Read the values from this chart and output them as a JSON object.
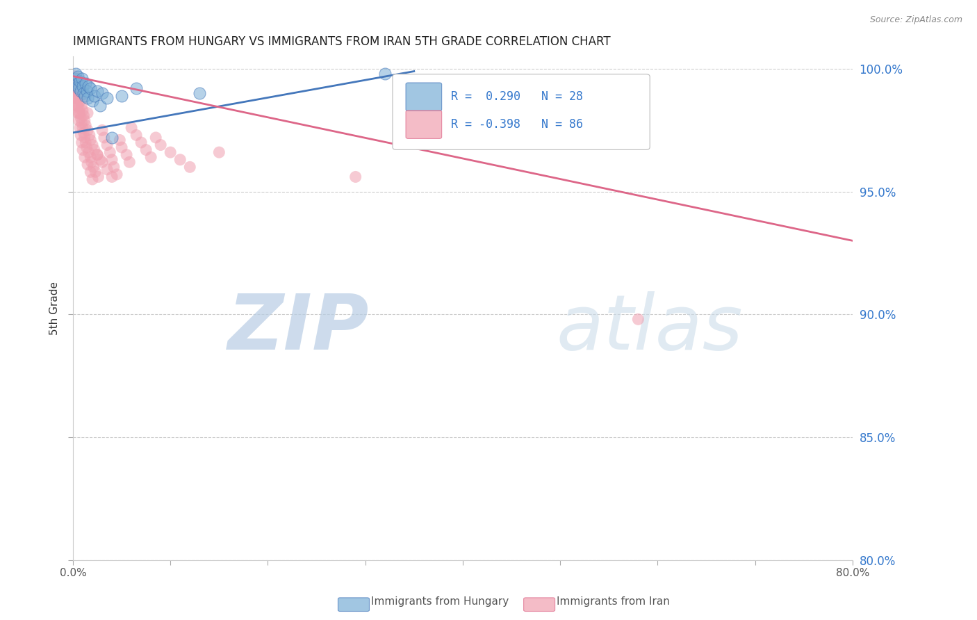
{
  "title": "IMMIGRANTS FROM HUNGARY VS IMMIGRANTS FROM IRAN 5TH GRADE CORRELATION CHART",
  "source": "Source: ZipAtlas.com",
  "ylabel": "5th Grade",
  "xlim": [
    0.0,
    0.8
  ],
  "ylim": [
    0.8,
    1.005
  ],
  "xticks": [
    0.0,
    0.1,
    0.2,
    0.3,
    0.4,
    0.5,
    0.6,
    0.7,
    0.8
  ],
  "xticklabels": [
    "0.0%",
    "",
    "",
    "",
    "",
    "",
    "",
    "",
    "80.0%"
  ],
  "ytick_positions": [
    0.8,
    0.85,
    0.9,
    0.95,
    1.0
  ],
  "ytick_labels": [
    "80.0%",
    "85.0%",
    "90.0%",
    "95.0%",
    "100.0%"
  ],
  "grid_color": "#cccccc",
  "background_color": "#ffffff",
  "hungary_color": "#7aaed6",
  "iran_color": "#f0a0b0",
  "hungary_line_color": "#4477bb",
  "iran_line_color": "#dd6688",
  "hungary_R": 0.29,
  "hungary_N": 28,
  "iran_R": -0.398,
  "iran_N": 86,
  "legend_color": "#3377cc",
  "watermark_zip": "ZIP",
  "watermark_atlas": "atlas",
  "watermark_color": "#ccd9ee",
  "hungary_scatter_x": [
    0.002,
    0.003,
    0.004,
    0.005,
    0.005,
    0.006,
    0.007,
    0.008,
    0.009,
    0.01,
    0.011,
    0.012,
    0.013,
    0.014,
    0.015,
    0.016,
    0.018,
    0.02,
    0.022,
    0.025,
    0.028,
    0.03,
    0.035,
    0.04,
    0.05,
    0.065,
    0.13,
    0.32
  ],
  "hungary_scatter_y": [
    0.996,
    0.998,
    0.994,
    0.993,
    0.997,
    0.992,
    0.995,
    0.991,
    0.996,
    0.993,
    0.99,
    0.989,
    0.994,
    0.991,
    0.988,
    0.993,
    0.992,
    0.987,
    0.989,
    0.991,
    0.985,
    0.99,
    0.988,
    0.972,
    0.989,
    0.992,
    0.99,
    0.998
  ],
  "iran_scatter_x": [
    0.001,
    0.002,
    0.002,
    0.003,
    0.003,
    0.004,
    0.004,
    0.005,
    0.005,
    0.006,
    0.006,
    0.007,
    0.007,
    0.008,
    0.008,
    0.009,
    0.009,
    0.01,
    0.01,
    0.011,
    0.011,
    0.012,
    0.012,
    0.013,
    0.013,
    0.014,
    0.015,
    0.015,
    0.016,
    0.017,
    0.018,
    0.018,
    0.019,
    0.02,
    0.021,
    0.022,
    0.023,
    0.025,
    0.026,
    0.028,
    0.03,
    0.032,
    0.035,
    0.038,
    0.04,
    0.042,
    0.045,
    0.048,
    0.05,
    0.055,
    0.058,
    0.06,
    0.065,
    0.07,
    0.075,
    0.08,
    0.085,
    0.09,
    0.1,
    0.11,
    0.12,
    0.002,
    0.003,
    0.004,
    0.005,
    0.006,
    0.007,
    0.008,
    0.009,
    0.01,
    0.012,
    0.015,
    0.018,
    0.02,
    0.025,
    0.03,
    0.035,
    0.04,
    0.002,
    0.003,
    0.004,
    0.005,
    0.006,
    0.15,
    0.29,
    0.58
  ],
  "iran_scatter_y": [
    0.996,
    0.993,
    0.997,
    0.99,
    0.995,
    0.988,
    0.992,
    0.986,
    0.993,
    0.984,
    0.991,
    0.982,
    0.989,
    0.98,
    0.987,
    0.978,
    0.985,
    0.976,
    0.983,
    0.974,
    0.981,
    0.972,
    0.979,
    0.97,
    0.977,
    0.968,
    0.975,
    0.982,
    0.966,
    0.973,
    0.964,
    0.971,
    0.962,
    0.969,
    0.96,
    0.967,
    0.958,
    0.965,
    0.956,
    0.963,
    0.975,
    0.972,
    0.969,
    0.966,
    0.963,
    0.96,
    0.957,
    0.971,
    0.968,
    0.965,
    0.962,
    0.976,
    0.973,
    0.97,
    0.967,
    0.964,
    0.972,
    0.969,
    0.966,
    0.963,
    0.96,
    0.991,
    0.988,
    0.985,
    0.982,
    0.979,
    0.976,
    0.973,
    0.97,
    0.967,
    0.964,
    0.961,
    0.958,
    0.955,
    0.965,
    0.962,
    0.959,
    0.956,
    0.994,
    0.991,
    0.988,
    0.985,
    0.982,
    0.966,
    0.956,
    0.898
  ],
  "hungary_trend_x": [
    0.0,
    0.35
  ],
  "hungary_trend_y": [
    0.974,
    0.999
  ],
  "iran_trend_x": [
    0.0,
    0.8
  ],
  "iran_trend_y": [
    0.997,
    0.93
  ]
}
